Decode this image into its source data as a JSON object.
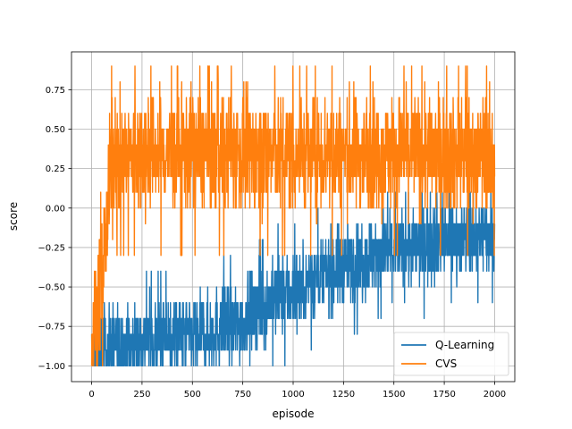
{
  "chart_data": {
    "type": "line",
    "title": "",
    "xlabel": "episode",
    "ylabel": "score",
    "xlim": [
      -100,
      2100
    ],
    "ylim": [
      -1.1,
      0.99
    ],
    "xticks": [
      0,
      250,
      500,
      750,
      1000,
      1250,
      1500,
      1750,
      2000
    ],
    "xtick_labels": [
      "0",
      "250",
      "500",
      "750",
      "1000",
      "1250",
      "1500",
      "1750",
      "2000"
    ],
    "yticks": [
      -1.0,
      -0.75,
      -0.5,
      -0.25,
      0.0,
      0.25,
      0.5,
      0.75
    ],
    "ytick_labels": [
      "−1.00",
      "−0.75",
      "−0.50",
      "−0.25",
      "0.00",
      "0.25",
      "0.50",
      "0.75"
    ],
    "grid": true,
    "legend_position": "bottom-right",
    "episodes": 2000,
    "series": [
      {
        "name": "Q-Learning",
        "color": "#1f77b4",
        "trend_x": [
          0,
          50,
          100,
          200,
          300,
          400,
          500,
          600,
          700,
          750,
          800,
          900,
          1000,
          1100,
          1200,
          1300,
          1400,
          1500,
          1600,
          1700,
          1800,
          1900,
          2000
        ],
        "trend_y": [
          -0.95,
          -0.92,
          -0.87,
          -0.85,
          -0.83,
          -0.82,
          -0.8,
          -0.78,
          -0.76,
          -0.72,
          -0.65,
          -0.58,
          -0.52,
          -0.45,
          -0.4,
          -0.35,
          -0.3,
          -0.27,
          -0.25,
          -0.22,
          -0.2,
          -0.18,
          -0.15
        ],
        "min": -1.0,
        "max": 0.1
      },
      {
        "name": "CVS",
        "color": "#ff7f0e",
        "trend_x": [
          0,
          25,
          50,
          75,
          100,
          150,
          300,
          500,
          700,
          1000,
          1300,
          1600,
          1900,
          2000
        ],
        "trend_y": [
          -0.85,
          -0.65,
          -0.45,
          -0.1,
          0.3,
          0.32,
          0.35,
          0.36,
          0.35,
          0.34,
          0.35,
          0.35,
          0.34,
          0.33
        ],
        "min": -1.0,
        "max": 0.9
      }
    ]
  }
}
